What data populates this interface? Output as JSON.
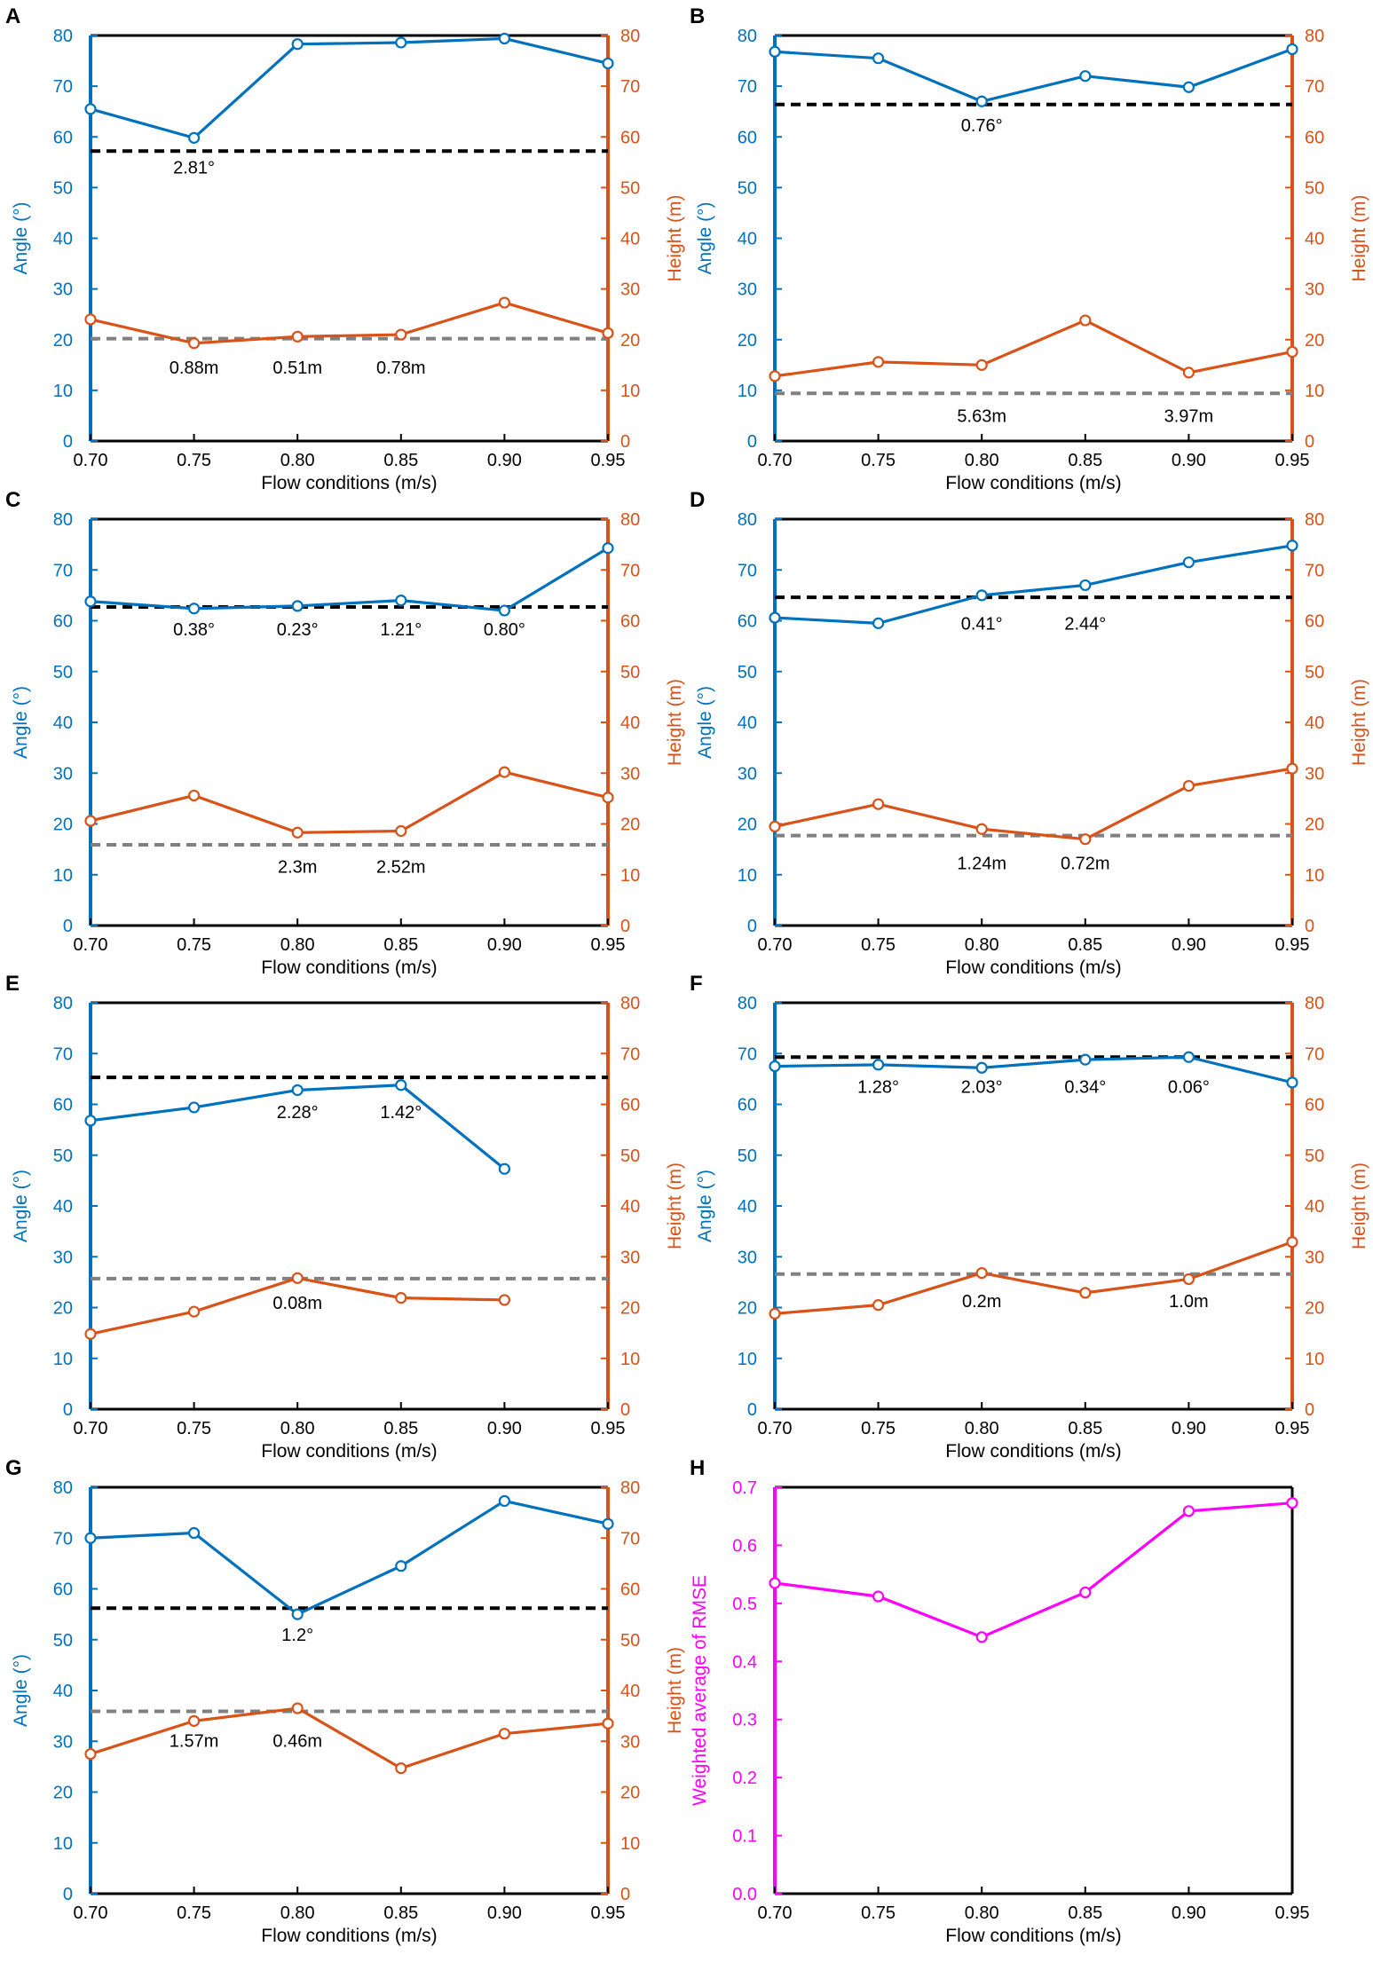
{
  "colors": {
    "angle": "#0072BD",
    "height": "#D95319",
    "angle_ref": "#000000",
    "height_ref": "#808080",
    "rmse": "#FF00FF",
    "frame": "#000000"
  },
  "chart_data": [
    {
      "panel": "A",
      "type": "line",
      "xlabel": "Flow conditions (m/s)",
      "ylabel_left": "Angle (°)",
      "ylabel_right": "Height (m)",
      "x": [
        0.7,
        0.75,
        0.8,
        0.85,
        0.9,
        0.95
      ],
      "xtick_labels": [
        "0.70",
        "0.75",
        "0.80",
        "0.85",
        "0.90",
        "0.95"
      ],
      "ylim": [
        0,
        80
      ],
      "yticks": [
        0,
        10,
        20,
        30,
        40,
        50,
        60,
        70,
        80
      ],
      "series": [
        {
          "name": "Angle",
          "axis": "left",
          "values": [
            65.5,
            59.8,
            78.3,
            78.6,
            79.4,
            74.5
          ]
        },
        {
          "name": "Height",
          "axis": "right",
          "values": [
            24.0,
            19.3,
            20.6,
            21.0,
            27.3,
            21.3
          ]
        }
      ],
      "ref_lines": [
        {
          "name": "Angle reference",
          "axis": "left",
          "value": 57.2,
          "style": "black"
        },
        {
          "name": "Height reference",
          "axis": "right",
          "value": 20.2,
          "style": "gray"
        }
      ],
      "annotations": [
        {
          "text": "2.81°",
          "x": 0.75,
          "y": 54
        },
        {
          "text": "0.88m",
          "x": 0.75,
          "y": 14.5
        },
        {
          "text": "0.51m",
          "x": 0.8,
          "y": 14.5
        },
        {
          "text": "0.78m",
          "x": 0.85,
          "y": 14.5
        }
      ]
    },
    {
      "panel": "B",
      "type": "line",
      "xlabel": "Flow conditions (m/s)",
      "ylabel_left": "Angle (°)",
      "ylabel_right": "Height (m)",
      "x": [
        0.7,
        0.75,
        0.8,
        0.85,
        0.9,
        0.95
      ],
      "xtick_labels": [
        "0.70",
        "0.75",
        "0.80",
        "0.85",
        "0.90",
        "0.95"
      ],
      "ylim": [
        0,
        80
      ],
      "yticks": [
        0,
        10,
        20,
        30,
        40,
        50,
        60,
        70,
        80
      ],
      "series": [
        {
          "name": "Angle",
          "axis": "left",
          "values": [
            76.8,
            75.5,
            67.0,
            72.0,
            69.8,
            77.3
          ]
        },
        {
          "name": "Height",
          "axis": "right",
          "values": [
            12.8,
            15.6,
            15.0,
            23.8,
            13.5,
            17.6
          ]
        }
      ],
      "ref_lines": [
        {
          "name": "Angle reference",
          "axis": "left",
          "value": 66.4,
          "style": "black"
        },
        {
          "name": "Height reference",
          "axis": "right",
          "value": 9.4,
          "style": "gray"
        }
      ],
      "annotations": [
        {
          "text": "0.76°",
          "x": 0.8,
          "y": 62.3
        },
        {
          "text": "5.63m",
          "x": 0.8,
          "y": 5.0
        },
        {
          "text": "3.97m",
          "x": 0.9,
          "y": 5.0
        }
      ]
    },
    {
      "panel": "C",
      "type": "line",
      "xlabel": "Flow conditions (m/s)",
      "ylabel_left": "Angle (°)",
      "ylabel_right": "Height (m)",
      "x": [
        0.7,
        0.75,
        0.8,
        0.85,
        0.9,
        0.95
      ],
      "xtick_labels": [
        "0.70",
        "0.75",
        "0.80",
        "0.85",
        "0.90",
        "0.95"
      ],
      "ylim": [
        0,
        80
      ],
      "yticks": [
        0,
        10,
        20,
        30,
        40,
        50,
        60,
        70,
        80
      ],
      "series": [
        {
          "name": "Angle",
          "axis": "left",
          "values": [
            63.8,
            62.4,
            62.9,
            64.0,
            62.0,
            74.3
          ]
        },
        {
          "name": "Height",
          "axis": "right",
          "values": [
            20.6,
            25.6,
            18.3,
            18.6,
            30.2,
            25.2
          ]
        }
      ],
      "ref_lines": [
        {
          "name": "Angle reference",
          "axis": "left",
          "value": 62.7,
          "style": "black"
        },
        {
          "name": "Height reference",
          "axis": "right",
          "value": 15.9,
          "style": "gray"
        }
      ],
      "annotations": [
        {
          "text": "0.38°",
          "x": 0.75,
          "y": 58.3
        },
        {
          "text": "0.23°",
          "x": 0.8,
          "y": 58.3
        },
        {
          "text": "1.21°",
          "x": 0.85,
          "y": 58.3
        },
        {
          "text": "0.80°",
          "x": 0.9,
          "y": 58.3
        },
        {
          "text": "2.3m",
          "x": 0.8,
          "y": 11.6
        },
        {
          "text": "2.52m",
          "x": 0.85,
          "y": 11.6
        }
      ]
    },
    {
      "panel": "D",
      "type": "line",
      "xlabel": "Flow conditions (m/s)",
      "ylabel_left": "Angle (°)",
      "ylabel_right": "Height (m)",
      "x": [
        0.7,
        0.75,
        0.8,
        0.85,
        0.9,
        0.95
      ],
      "xtick_labels": [
        "0.70",
        "0.75",
        "0.80",
        "0.85",
        "0.90",
        "0.95"
      ],
      "ylim": [
        0,
        80
      ],
      "yticks": [
        0,
        10,
        20,
        30,
        40,
        50,
        60,
        70,
        80
      ],
      "series": [
        {
          "name": "Angle",
          "axis": "left",
          "values": [
            60.6,
            59.5,
            65.0,
            67.0,
            71.5,
            74.8
          ]
        },
        {
          "name": "Height",
          "axis": "right",
          "values": [
            19.5,
            23.9,
            19.0,
            17.0,
            27.5,
            30.9
          ]
        }
      ],
      "ref_lines": [
        {
          "name": "Angle reference",
          "axis": "left",
          "value": 64.6,
          "style": "black"
        },
        {
          "name": "Height reference",
          "axis": "right",
          "value": 17.7,
          "style": "gray"
        }
      ],
      "annotations": [
        {
          "text": "0.41°",
          "x": 0.8,
          "y": 59.5
        },
        {
          "text": "2.44°",
          "x": 0.85,
          "y": 59.5
        },
        {
          "text": "1.24m",
          "x": 0.8,
          "y": 12.3
        },
        {
          "text": "0.72m",
          "x": 0.85,
          "y": 12.3
        }
      ]
    },
    {
      "panel": "E",
      "type": "line",
      "xlabel": "Flow conditions (m/s)",
      "ylabel_left": "Angle (°)",
      "ylabel_right": "Height (m)",
      "x": [
        0.7,
        0.75,
        0.8,
        0.85,
        0.9,
        0.95
      ],
      "xtick_labels": [
        "0.70",
        "0.75",
        "0.80",
        "0.85",
        "0.90",
        "0.95"
      ],
      "ylim": [
        0,
        80
      ],
      "yticks": [
        0,
        10,
        20,
        30,
        40,
        50,
        60,
        70,
        80
      ],
      "series": [
        {
          "name": "Angle",
          "axis": "left",
          "values": [
            56.8,
            59.4,
            62.8,
            63.8,
            47.3,
            null
          ]
        },
        {
          "name": "Height",
          "axis": "right",
          "values": [
            14.8,
            19.2,
            25.8,
            21.9,
            21.5,
            null
          ]
        }
      ],
      "ref_lines": [
        {
          "name": "Angle reference",
          "axis": "left",
          "value": 65.3,
          "style": "black"
        },
        {
          "name": "Height reference",
          "axis": "right",
          "value": 25.7,
          "style": "gray"
        }
      ],
      "annotations": [
        {
          "text": "2.28°",
          "x": 0.8,
          "y": 58.5
        },
        {
          "text": "1.42°",
          "x": 0.85,
          "y": 58.5
        },
        {
          "text": "0.08m",
          "x": 0.8,
          "y": 21.0
        }
      ]
    },
    {
      "panel": "F",
      "type": "line",
      "xlabel": "Flow conditions (m/s)",
      "ylabel_left": "Angle (°)",
      "ylabel_right": "Height (m)",
      "x": [
        0.7,
        0.75,
        0.8,
        0.85,
        0.9,
        0.95
      ],
      "xtick_labels": [
        "0.70",
        "0.75",
        "0.80",
        "0.85",
        "0.90",
        "0.95"
      ],
      "ylim": [
        0,
        80
      ],
      "yticks": [
        0,
        10,
        20,
        30,
        40,
        50,
        60,
        70,
        80
      ],
      "series": [
        {
          "name": "Angle",
          "axis": "left",
          "values": [
            67.5,
            67.8,
            67.2,
            68.8,
            69.3,
            64.3
          ]
        },
        {
          "name": "Height",
          "axis": "right",
          "values": [
            18.8,
            20.5,
            26.8,
            22.9,
            25.6,
            32.9
          ]
        }
      ],
      "ref_lines": [
        {
          "name": "Angle reference",
          "axis": "left",
          "value": 69.3,
          "style": "black"
        },
        {
          "name": "Height reference",
          "axis": "right",
          "value": 26.6,
          "style": "gray"
        }
      ],
      "annotations": [
        {
          "text": "1.28°",
          "x": 0.75,
          "y": 63.5
        },
        {
          "text": "2.03°",
          "x": 0.8,
          "y": 63.5
        },
        {
          "text": "0.34°",
          "x": 0.85,
          "y": 63.5
        },
        {
          "text": "0.06°",
          "x": 0.9,
          "y": 63.5
        },
        {
          "text": "0.2m",
          "x": 0.8,
          "y": 21.3
        },
        {
          "text": "1.0m",
          "x": 0.9,
          "y": 21.3
        }
      ]
    },
    {
      "panel": "G",
      "type": "line",
      "xlabel": "Flow conditions (m/s)",
      "ylabel_left": "Angle (°)",
      "ylabel_right": "Height (m)",
      "x": [
        0.7,
        0.75,
        0.8,
        0.85,
        0.9,
        0.95
      ],
      "xtick_labels": [
        "0.70",
        "0.75",
        "0.80",
        "0.85",
        "0.90",
        "0.95"
      ],
      "ylim": [
        0,
        80
      ],
      "yticks": [
        0,
        10,
        20,
        30,
        40,
        50,
        60,
        70,
        80
      ],
      "series": [
        {
          "name": "Angle",
          "axis": "left",
          "values": [
            70.0,
            71.0,
            55.0,
            64.5,
            77.3,
            72.8
          ]
        },
        {
          "name": "Height",
          "axis": "right",
          "values": [
            27.5,
            34.0,
            36.5,
            24.7,
            31.5,
            33.5
          ]
        }
      ],
      "ref_lines": [
        {
          "name": "Angle reference",
          "axis": "left",
          "value": 56.2,
          "style": "black"
        },
        {
          "name": "Height reference",
          "axis": "right",
          "value": 35.9,
          "style": "gray"
        }
      ],
      "annotations": [
        {
          "text": "1.2°",
          "x": 0.8,
          "y": 51.0
        },
        {
          "text": "1.57m",
          "x": 0.75,
          "y": 30.1
        },
        {
          "text": "0.46m",
          "x": 0.8,
          "y": 30.1
        }
      ]
    },
    {
      "panel": "H",
      "type": "line",
      "xlabel": "Flow conditions (m/s)",
      "ylabel": "Weighted average of RMSE",
      "x": [
        0.7,
        0.75,
        0.8,
        0.85,
        0.9,
        0.95
      ],
      "xtick_labels": [
        "0.70",
        "0.75",
        "0.80",
        "0.85",
        "0.90",
        "0.95"
      ],
      "ylim": [
        0,
        0.7
      ],
      "ytick_labels": [
        "0.0",
        "0.1",
        "0.2",
        "0.3",
        "0.4",
        "0.5",
        "0.6",
        "0.7"
      ],
      "series": [
        {
          "name": "Weighted average of RMSE",
          "axis": "left",
          "values": [
            0.535,
            0.512,
            0.442,
            0.519,
            0.659,
            0.673
          ]
        }
      ]
    }
  ]
}
